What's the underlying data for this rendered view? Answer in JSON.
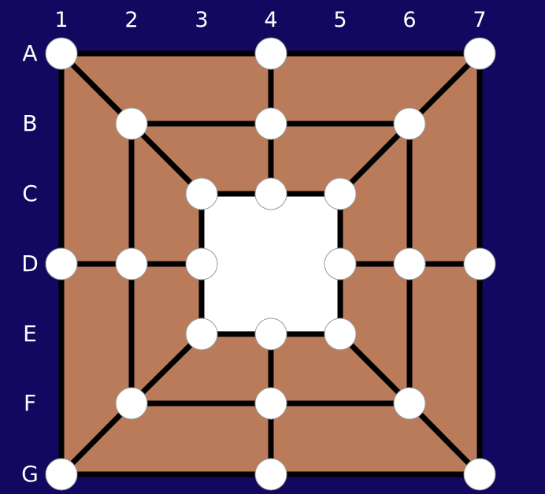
{
  "board": {
    "columns": [
      "1",
      "2",
      "3",
      "4",
      "5",
      "6",
      "7"
    ],
    "rows": [
      "A",
      "B",
      "C",
      "D",
      "E",
      "F",
      "G"
    ],
    "colors": {
      "background": "#13085f",
      "board": "#b97b5a",
      "center": "#ffffff",
      "line": "#000000",
      "point": "#ffffff",
      "label": "#ffffff"
    },
    "points": [
      {
        "id": "A1",
        "row": "A",
        "col": "1",
        "occupied": false
      },
      {
        "id": "A4",
        "row": "A",
        "col": "4",
        "occupied": false
      },
      {
        "id": "A7",
        "row": "A",
        "col": "7",
        "occupied": false
      },
      {
        "id": "B2",
        "row": "B",
        "col": "2",
        "occupied": false
      },
      {
        "id": "B4",
        "row": "B",
        "col": "4",
        "occupied": false
      },
      {
        "id": "B6",
        "row": "B",
        "col": "6",
        "occupied": false
      },
      {
        "id": "C3",
        "row": "C",
        "col": "3",
        "occupied": false
      },
      {
        "id": "C4",
        "row": "C",
        "col": "4",
        "occupied": false
      },
      {
        "id": "C5",
        "row": "C",
        "col": "5",
        "occupied": false
      },
      {
        "id": "D1",
        "row": "D",
        "col": "1",
        "occupied": false
      },
      {
        "id": "D2",
        "row": "D",
        "col": "2",
        "occupied": false
      },
      {
        "id": "D3",
        "row": "D",
        "col": "3",
        "occupied": false
      },
      {
        "id": "D5",
        "row": "D",
        "col": "5",
        "occupied": false
      },
      {
        "id": "D6",
        "row": "D",
        "col": "6",
        "occupied": false
      },
      {
        "id": "D7",
        "row": "D",
        "col": "7",
        "occupied": false
      },
      {
        "id": "E3",
        "row": "E",
        "col": "3",
        "occupied": false
      },
      {
        "id": "E4",
        "row": "E",
        "col": "4",
        "occupied": false
      },
      {
        "id": "E5",
        "row": "E",
        "col": "5",
        "occupied": false
      },
      {
        "id": "F2",
        "row": "F",
        "col": "2",
        "occupied": false
      },
      {
        "id": "F4",
        "row": "F",
        "col": "4",
        "occupied": false
      },
      {
        "id": "F6",
        "row": "F",
        "col": "6",
        "occupied": false
      },
      {
        "id": "G1",
        "row": "G",
        "col": "1",
        "occupied": false
      },
      {
        "id": "G4",
        "row": "G",
        "col": "4",
        "occupied": false
      },
      {
        "id": "G7",
        "row": "G",
        "col": "7",
        "occupied": false
      }
    ],
    "connections": [
      [
        "A1",
        "A4"
      ],
      [
        "A4",
        "A7"
      ],
      [
        "B2",
        "B4"
      ],
      [
        "B4",
        "B6"
      ],
      [
        "C3",
        "C4"
      ],
      [
        "C4",
        "C5"
      ],
      [
        "E3",
        "E4"
      ],
      [
        "E4",
        "E5"
      ],
      [
        "F2",
        "F4"
      ],
      [
        "F4",
        "F6"
      ],
      [
        "G1",
        "G4"
      ],
      [
        "G4",
        "G7"
      ],
      [
        "D1",
        "D2"
      ],
      [
        "D2",
        "D3"
      ],
      [
        "D5",
        "D6"
      ],
      [
        "D6",
        "D7"
      ],
      [
        "A1",
        "D1"
      ],
      [
        "D1",
        "G1"
      ],
      [
        "B2",
        "D2"
      ],
      [
        "D2",
        "F2"
      ],
      [
        "C3",
        "D3"
      ],
      [
        "D3",
        "E3"
      ],
      [
        "C5",
        "D5"
      ],
      [
        "D5",
        "E5"
      ],
      [
        "B6",
        "D6"
      ],
      [
        "D6",
        "F6"
      ],
      [
        "A7",
        "D7"
      ],
      [
        "D7",
        "G7"
      ],
      [
        "A4",
        "B4"
      ],
      [
        "B4",
        "C4"
      ],
      [
        "E4",
        "F4"
      ],
      [
        "F4",
        "G4"
      ],
      [
        "A1",
        "B2"
      ],
      [
        "B2",
        "C3"
      ],
      [
        "A7",
        "B6"
      ],
      [
        "B6",
        "C5"
      ],
      [
        "G1",
        "F2"
      ],
      [
        "F2",
        "E3"
      ],
      [
        "G7",
        "F6"
      ],
      [
        "F6",
        "E5"
      ]
    ]
  }
}
